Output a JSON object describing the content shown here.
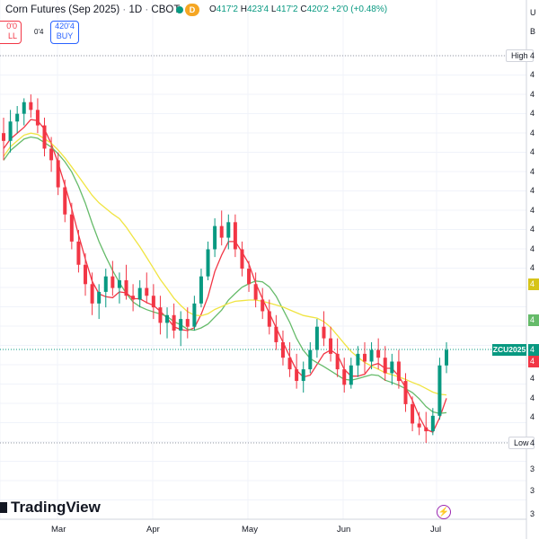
{
  "header": {
    "symbol_title": "Corn Futures (Sep 2025)",
    "sep1": "·",
    "interval": "1D",
    "sep2": "·",
    "exchange": "CBOT",
    "d_badge": "D",
    "ohlc": {
      "open_key": "O",
      "open_val": "417'2",
      "high_key": "H",
      "high_val": "423'4",
      "low_key": "L",
      "low_val": "417'2",
      "close_key": "C",
      "close_val": "420'2",
      "change": "+2'0 (+0.48%)"
    }
  },
  "trade": {
    "sell_price": "0'0",
    "sell_label": "LL",
    "spread": "0'4",
    "buy_price": "420'4",
    "buy_label": "BUY"
  },
  "labels": {
    "high": "High",
    "low": "Low",
    "last_symbol": "ZCU2025"
  },
  "price_axis": {
    "currency_fragment": "U",
    "fragment_b": "B",
    "tick_fragment": "4",
    "lower_fragment": "3"
  },
  "time_axis": [
    "Mar",
    "Apr",
    "May",
    "Jun",
    "Jul"
  ],
  "branding": {
    "logo_text": "TradingView"
  },
  "colors": {
    "up": "#089981",
    "down": "#f23645",
    "ma_fast": "#f23645",
    "ma_mid": "#66bb6a",
    "ma_slow": "#f0e442",
    "grid": "#f0f3fa"
  },
  "chart_data": {
    "type": "candlestick",
    "symbol": "ZCU2025",
    "interval": "1D",
    "y_axis_visible_digit": "4",
    "series_ohlc_approx": [
      {
        "o": 0.8,
        "h": 0.84,
        "l": 0.73,
        "c": 0.78
      },
      {
        "o": 0.78,
        "h": 0.86,
        "l": 0.75,
        "c": 0.83
      },
      {
        "o": 0.83,
        "h": 0.87,
        "l": 0.8,
        "c": 0.85
      },
      {
        "o": 0.85,
        "h": 0.89,
        "l": 0.82,
        "c": 0.88
      },
      {
        "o": 0.88,
        "h": 0.9,
        "l": 0.84,
        "c": 0.86
      },
      {
        "o": 0.86,
        "h": 0.89,
        "l": 0.8,
        "c": 0.82
      },
      {
        "o": 0.82,
        "h": 0.84,
        "l": 0.74,
        "c": 0.76
      },
      {
        "o": 0.76,
        "h": 0.79,
        "l": 0.7,
        "c": 0.73
      },
      {
        "o": 0.73,
        "h": 0.75,
        "l": 0.64,
        "c": 0.66
      },
      {
        "o": 0.66,
        "h": 0.68,
        "l": 0.57,
        "c": 0.59
      },
      {
        "o": 0.59,
        "h": 0.62,
        "l": 0.5,
        "c": 0.52
      },
      {
        "o": 0.52,
        "h": 0.55,
        "l": 0.44,
        "c": 0.46
      },
      {
        "o": 0.46,
        "h": 0.49,
        "l": 0.38,
        "c": 0.41
      },
      {
        "o": 0.41,
        "h": 0.44,
        "l": 0.33,
        "c": 0.36
      },
      {
        "o": 0.36,
        "h": 0.41,
        "l": 0.32,
        "c": 0.39
      },
      {
        "o": 0.39,
        "h": 0.45,
        "l": 0.35,
        "c": 0.43
      },
      {
        "o": 0.43,
        "h": 0.47,
        "l": 0.38,
        "c": 0.4
      },
      {
        "o": 0.4,
        "h": 0.44,
        "l": 0.36,
        "c": 0.42
      },
      {
        "o": 0.42,
        "h": 0.46,
        "l": 0.37,
        "c": 0.38
      },
      {
        "o": 0.38,
        "h": 0.41,
        "l": 0.34,
        "c": 0.37
      },
      {
        "o": 0.37,
        "h": 0.42,
        "l": 0.35,
        "c": 0.4
      },
      {
        "o": 0.4,
        "h": 0.44,
        "l": 0.36,
        "c": 0.38
      },
      {
        "o": 0.38,
        "h": 0.41,
        "l": 0.32,
        "c": 0.35
      },
      {
        "o": 0.35,
        "h": 0.38,
        "l": 0.28,
        "c": 0.31
      },
      {
        "o": 0.31,
        "h": 0.35,
        "l": 0.27,
        "c": 0.33
      },
      {
        "o": 0.33,
        "h": 0.36,
        "l": 0.27,
        "c": 0.29
      },
      {
        "o": 0.29,
        "h": 0.34,
        "l": 0.25,
        "c": 0.32
      },
      {
        "o": 0.32,
        "h": 0.35,
        "l": 0.27,
        "c": 0.3
      },
      {
        "o": 0.3,
        "h": 0.38,
        "l": 0.29,
        "c": 0.36
      },
      {
        "o": 0.36,
        "h": 0.45,
        "l": 0.35,
        "c": 0.43
      },
      {
        "o": 0.43,
        "h": 0.52,
        "l": 0.42,
        "c": 0.5
      },
      {
        "o": 0.5,
        "h": 0.58,
        "l": 0.48,
        "c": 0.56
      },
      {
        "o": 0.56,
        "h": 0.6,
        "l": 0.51,
        "c": 0.53
      },
      {
        "o": 0.53,
        "h": 0.59,
        "l": 0.5,
        "c": 0.57
      },
      {
        "o": 0.57,
        "h": 0.59,
        "l": 0.48,
        "c": 0.5
      },
      {
        "o": 0.5,
        "h": 0.52,
        "l": 0.43,
        "c": 0.45
      },
      {
        "o": 0.45,
        "h": 0.47,
        "l": 0.39,
        "c": 0.41
      },
      {
        "o": 0.41,
        "h": 0.44,
        "l": 0.35,
        "c": 0.37
      },
      {
        "o": 0.37,
        "h": 0.4,
        "l": 0.32,
        "c": 0.34
      },
      {
        "o": 0.34,
        "h": 0.37,
        "l": 0.28,
        "c": 0.3
      },
      {
        "o": 0.3,
        "h": 0.33,
        "l": 0.24,
        "c": 0.26
      },
      {
        "o": 0.26,
        "h": 0.29,
        "l": 0.2,
        "c": 0.22
      },
      {
        "o": 0.22,
        "h": 0.26,
        "l": 0.17,
        "c": 0.19
      },
      {
        "o": 0.19,
        "h": 0.23,
        "l": 0.14,
        "c": 0.16
      },
      {
        "o": 0.16,
        "h": 0.21,
        "l": 0.13,
        "c": 0.19
      },
      {
        "o": 0.19,
        "h": 0.26,
        "l": 0.18,
        "c": 0.24
      },
      {
        "o": 0.24,
        "h": 0.32,
        "l": 0.22,
        "c": 0.3
      },
      {
        "o": 0.3,
        "h": 0.34,
        "l": 0.25,
        "c": 0.27
      },
      {
        "o": 0.27,
        "h": 0.3,
        "l": 0.21,
        "c": 0.23
      },
      {
        "o": 0.23,
        "h": 0.27,
        "l": 0.17,
        "c": 0.19
      },
      {
        "o": 0.19,
        "h": 0.22,
        "l": 0.13,
        "c": 0.15
      },
      {
        "o": 0.15,
        "h": 0.22,
        "l": 0.14,
        "c": 0.2
      },
      {
        "o": 0.2,
        "h": 0.25,
        "l": 0.17,
        "c": 0.23
      },
      {
        "o": 0.23,
        "h": 0.26,
        "l": 0.18,
        "c": 0.21
      },
      {
        "o": 0.21,
        "h": 0.26,
        "l": 0.19,
        "c": 0.24
      },
      {
        "o": 0.24,
        "h": 0.27,
        "l": 0.19,
        "c": 0.22
      },
      {
        "o": 0.22,
        "h": 0.25,
        "l": 0.16,
        "c": 0.18
      },
      {
        "o": 0.18,
        "h": 0.23,
        "l": 0.15,
        "c": 0.21
      },
      {
        "o": 0.21,
        "h": 0.24,
        "l": 0.14,
        "c": 0.16
      },
      {
        "o": 0.16,
        "h": 0.18,
        "l": 0.08,
        "c": 0.1
      },
      {
        "o": 0.1,
        "h": 0.12,
        "l": 0.03,
        "c": 0.05
      },
      {
        "o": 0.05,
        "h": 0.08,
        "l": 0.02,
        "c": 0.04
      },
      {
        "o": 0.04,
        "h": 0.08,
        "l": 0.0,
        "c": 0.03
      },
      {
        "o": 0.03,
        "h": 0.09,
        "l": 0.02,
        "c": 0.07
      },
      {
        "o": 0.07,
        "h": 0.22,
        "l": 0.06,
        "c": 0.2
      },
      {
        "o": 0.2,
        "h": 0.26,
        "l": 0.18,
        "c": 0.24
      }
    ],
    "moving_averages": [
      {
        "name": "",
        "color": "#f23645"
      },
      {
        "name": "",
        "color": "#66bb6a"
      },
      {
        "name": "",
        "color": "#f0e442"
      }
    ],
    "x_tick_labels": [
      "Mar",
      "Apr",
      "May",
      "Jun",
      "Jul"
    ],
    "grid": true
  }
}
